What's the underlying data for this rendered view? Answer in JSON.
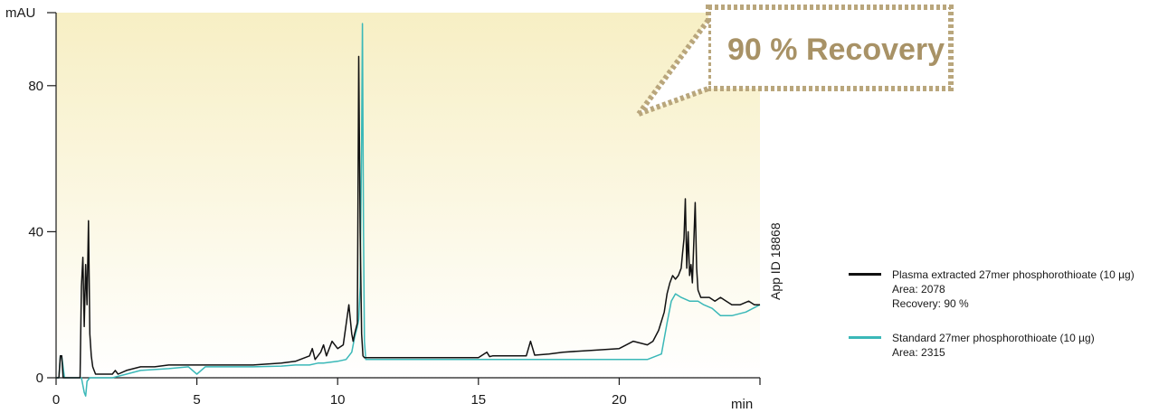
{
  "chart_data": {
    "type": "line",
    "xlabel": "",
    "ylabel": "",
    "x_unit": "min",
    "y_unit": "mAU",
    "xlim": [
      0,
      25
    ],
    "ylim": [
      0,
      100
    ],
    "x_ticks": [
      0,
      5,
      10,
      15,
      20
    ],
    "y_ticks": [
      0,
      40,
      80
    ],
    "grid": false,
    "legend_position": "right",
    "annotation": "90 % Recovery",
    "side_label": "App ID 18868",
    "series": [
      {
        "name": "Plasma extracted 27mer phosphorothioate (10 µg)",
        "color": "#111111",
        "details": [
          "Area: 2078",
          "Recovery: 90 %"
        ],
        "x": [
          0,
          0.1,
          0.15,
          0.2,
          0.25,
          0.3,
          0.6,
          0.85,
          0.9,
          0.95,
          1.0,
          1.05,
          1.1,
          1.15,
          1.2,
          1.25,
          1.3,
          1.35,
          1.4,
          1.6,
          1.8,
          2.0,
          2.1,
          2.2,
          2.5,
          3.0,
          3.5,
          4.0,
          5.0,
          6.0,
          7.0,
          8.0,
          8.5,
          9.0,
          9.1,
          9.2,
          9.4,
          9.5,
          9.6,
          9.8,
          10.0,
          10.2,
          10.4,
          10.5,
          10.55,
          10.6,
          10.7,
          10.75,
          10.8,
          10.85,
          10.9,
          10.95,
          11.0,
          11.05,
          11.1,
          11.2,
          11.5,
          12.0,
          13.0,
          14.0,
          15.0,
          15.3,
          15.4,
          15.5,
          16.0,
          16.7,
          16.85,
          17.0,
          17.5,
          18.0,
          19.0,
          20.0,
          20.5,
          21.0,
          21.2,
          21.4,
          21.6,
          21.7,
          21.8,
          21.9,
          22.0,
          22.1,
          22.2,
          22.25,
          22.3,
          22.35,
          22.4,
          22.45,
          22.5,
          22.55,
          22.6,
          22.7,
          22.75,
          22.8,
          22.85,
          22.9,
          23.0,
          23.2,
          23.4,
          23.6,
          23.8,
          24.0,
          24.3,
          24.6,
          24.8,
          25.0
        ],
        "y": [
          0,
          0,
          6,
          6,
          0,
          0,
          0,
          0,
          25,
          33,
          14,
          31,
          20,
          43,
          12,
          6,
          3,
          2,
          1,
          1,
          1,
          1,
          2,
          1,
          2,
          3,
          3,
          3.5,
          3.5,
          3.5,
          3.5,
          4,
          4.5,
          6,
          8,
          5,
          7,
          9,
          6,
          10,
          8,
          9,
          20,
          12,
          10,
          12,
          15,
          88,
          40,
          12,
          6,
          5.5,
          5.5,
          5.5,
          5.5,
          5.5,
          5.5,
          5.5,
          5.5,
          5.5,
          5.5,
          7,
          5.8,
          6,
          6,
          6,
          10,
          6.2,
          6.5,
          7,
          7.5,
          8,
          10,
          9,
          10,
          13,
          18,
          23,
          26,
          28,
          27,
          28,
          30,
          34,
          38,
          49,
          30,
          40,
          28,
          31,
          26,
          48,
          30,
          24,
          23,
          22,
          22,
          22,
          21,
          22,
          21,
          20,
          20,
          21,
          20,
          20
        ]
      },
      {
        "name": "Standard 27mer phosphorothioate (10 µg)",
        "color": "#3ab8b8",
        "details": [
          "Area: 2315"
        ],
        "x": [
          0,
          0.1,
          0.15,
          0.2,
          0.3,
          0.6,
          0.9,
          1.0,
          1.05,
          1.1,
          1.2,
          1.5,
          2.0,
          2.5,
          3.0,
          4.0,
          4.7,
          5.0,
          5.3,
          6.0,
          7.0,
          8.0,
          8.5,
          9.0,
          9.3,
          9.5,
          10.0,
          10.3,
          10.5,
          10.6,
          10.7,
          10.75,
          10.8,
          10.85,
          10.88,
          10.92,
          10.95,
          11.0,
          11.05,
          11.1,
          11.2,
          11.5,
          12.0,
          13.0,
          14.0,
          15.0,
          16.0,
          17.0,
          18.0,
          19.0,
          20.0,
          21.0,
          21.5,
          21.7,
          21.85,
          22.0,
          22.2,
          22.5,
          22.8,
          23.0,
          23.3,
          23.6,
          24.0,
          24.5,
          25.0
        ],
        "y": [
          0,
          0,
          6,
          6,
          0,
          0,
          0,
          -4,
          -5,
          -1,
          0,
          0,
          0,
          1,
          2,
          2.5,
          3,
          1,
          3,
          3,
          3,
          3.2,
          3.5,
          3.5,
          4,
          4,
          4.5,
          5,
          7,
          11,
          14,
          16,
          25,
          65,
          97,
          40,
          10,
          5,
          5,
          5,
          5,
          5,
          5,
          5,
          5,
          5,
          5,
          5,
          5,
          5,
          5,
          5,
          6.5,
          15,
          21,
          23,
          22,
          21,
          21,
          20,
          19,
          17,
          17,
          18,
          20
        ]
      }
    ]
  }
}
